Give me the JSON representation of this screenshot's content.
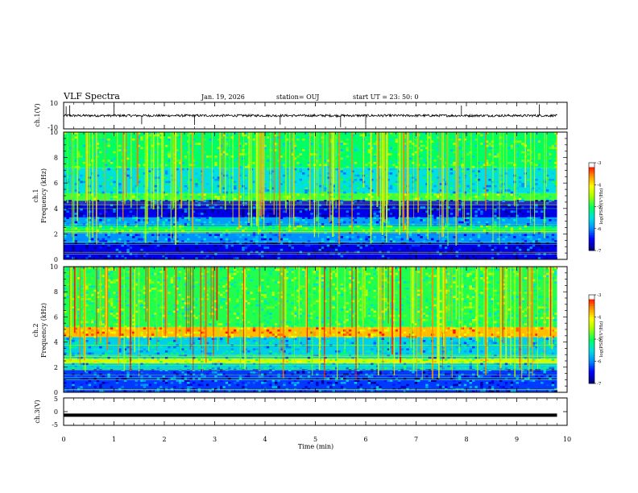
{
  "header": {
    "title": "VLF Spectra",
    "date": "Jan. 19, 2026",
    "station": "station= OUJ",
    "start": "start  UT =   23: 50: 0"
  },
  "colorscale": {
    "stops": [
      "#000080",
      "#0000ff",
      "#0090ff",
      "#00e0e0",
      "#00ff60",
      "#a0ff00",
      "#ffff00",
      "#ff9000",
      "#ff0000",
      "#ffffff"
    ]
  },
  "chart_data": [
    {
      "type": "line",
      "name": "ch1-waveform",
      "ylabel": "ch.1(V)",
      "ylim": [
        -10,
        10
      ],
      "tick_labels": [
        "10",
        "-10"
      ],
      "baseline_v": 0,
      "description_series": "noise around 0 V with spikes",
      "spikes_min": [
        0.05,
        0.12,
        1.0,
        1.55,
        2.6,
        4.3,
        5.5,
        6.0,
        7.9,
        9.45
      ]
    },
    {
      "type": "heatmap",
      "name": "ch1-spectrogram",
      "ylabel": "ch.1\nFrequency (kHz)",
      "ylabel_line1": "ch.1",
      "ylabel_line2": "Frequency (kHz)",
      "xlim": [
        0,
        10
      ],
      "ylim": [
        0,
        10
      ],
      "y_tick_labels": [
        "0",
        "2",
        "4",
        "6",
        "8",
        "10"
      ],
      "duration_min": 9.8,
      "log_psd_range": [
        -7,
        -3
      ],
      "bands": [
        {
          "f_lo": 0.0,
          "f_hi": 1.3,
          "level": -6.6
        },
        {
          "f_lo": 1.3,
          "f_hi": 2.2,
          "level": -6.0
        },
        {
          "f_lo": 2.2,
          "f_hi": 2.6,
          "level": -5.0
        },
        {
          "f_lo": 2.6,
          "f_hi": 3.3,
          "level": -5.9
        },
        {
          "f_lo": 3.3,
          "f_hi": 4.6,
          "level": -6.6
        },
        {
          "f_lo": 4.6,
          "f_hi": 5.2,
          "level": -4.8
        },
        {
          "f_lo": 5.2,
          "f_hi": 7.2,
          "level": -5.5
        },
        {
          "f_lo": 7.2,
          "f_hi": 10.0,
          "level": -5.0
        }
      ],
      "sferic_strength": 0.9,
      "colorbar": {
        "ticks": [
          -3,
          -4,
          -5,
          -6,
          -7
        ],
        "tick_labels": [
          "-3",
          "-4",
          "-5",
          "-6",
          "-7"
        ],
        "label": "log(PSD)(V²/Hz)"
      }
    },
    {
      "type": "heatmap",
      "name": "ch2-spectrogram",
      "ylabel": "ch.2\nFrequency (kHz)",
      "ylabel_line1": "ch.2",
      "ylabel_line2": "Frequency (kHz)",
      "xlim": [
        0,
        10
      ],
      "ylim": [
        0,
        10
      ],
      "y_tick_labels": [
        "0",
        "2",
        "4",
        "6",
        "8",
        "10"
      ],
      "duration_min": 9.8,
      "log_psd_range": [
        -7,
        -3
      ],
      "bands": [
        {
          "f_lo": 0.0,
          "f_hi": 1.8,
          "level": -6.3
        },
        {
          "f_lo": 1.8,
          "f_hi": 2.3,
          "level": -5.6
        },
        {
          "f_lo": 2.3,
          "f_hi": 2.7,
          "level": -4.3
        },
        {
          "f_lo": 2.7,
          "f_hi": 4.4,
          "level": -5.6
        },
        {
          "f_lo": 4.4,
          "f_hi": 5.2,
          "level": -3.7
        },
        {
          "f_lo": 5.2,
          "f_hi": 10.0,
          "level": -4.9
        }
      ],
      "sferic_strength": 1.2,
      "colorbar": {
        "ticks": [
          -3,
          -4,
          -5,
          -6,
          -7
        ],
        "tick_labels": [
          "-3",
          "-4",
          "-5",
          "-6",
          "-7"
        ],
        "label": "log(PSD)(V²/Hz)"
      }
    },
    {
      "type": "line",
      "name": "ch3-waveform",
      "ylabel": "ch.3(V)",
      "ylim": [
        -5,
        5
      ],
      "tick_labels": [
        "5",
        "0",
        "-5"
      ],
      "constant_v": -1.3,
      "duration_min": 9.8,
      "xlabel": "Time  (min)",
      "x_tick_values": [
        0,
        1,
        2,
        3,
        4,
        5,
        6,
        7,
        8,
        9,
        10
      ],
      "x_tick_labels": [
        "0",
        "1",
        "2",
        "3",
        "4",
        "5",
        "6",
        "7",
        "8",
        "9",
        "10"
      ]
    }
  ]
}
